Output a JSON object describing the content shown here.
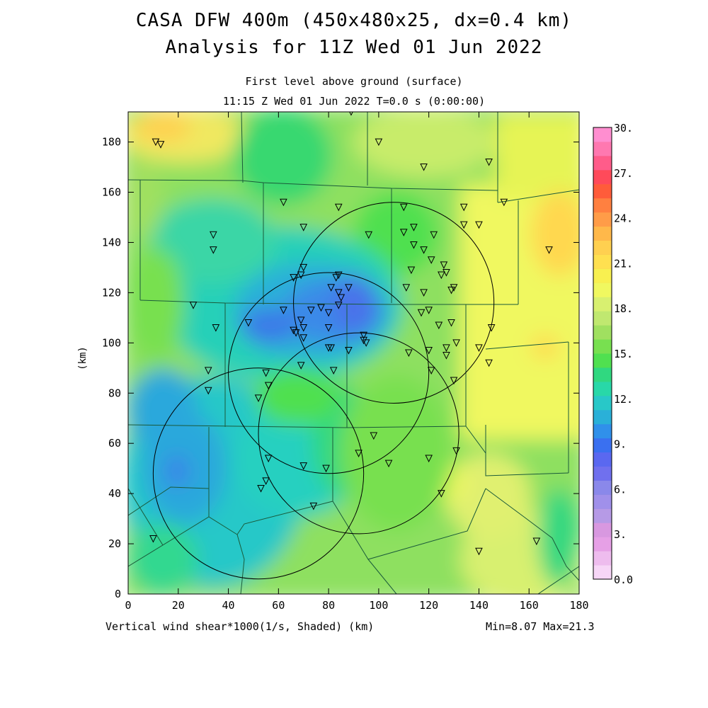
{
  "title": {
    "line1": "CASA DFW 400m (450x480x25, dx=0.4 km)",
    "line2": "Analysis for 11Z Wed 01 Jun 2022",
    "level": "First level above ground (surface)",
    "time": "11:15 Z Wed 01 Jun 2022    T=0.0 s (0:00:00)"
  },
  "footer": {
    "field_label": "Vertical wind shear*1000(1/s, Shaded)  (km)",
    "minmax": "Min=8.07 Max=21.3"
  },
  "axes": {
    "ylabel": "(km)",
    "x_ticks": [
      "0",
      "20",
      "40",
      "60",
      "80",
      "100",
      "120",
      "140",
      "160",
      "180"
    ],
    "y_ticks": [
      "0",
      "20",
      "40",
      "60",
      "80",
      "100",
      "120",
      "140",
      "160",
      "180"
    ],
    "xlim": [
      0,
      180
    ],
    "ylim": [
      0,
      192
    ]
  },
  "colorbar": {
    "labels": [
      "0.0",
      "3.",
      "6.",
      "9.",
      "12.",
      "15.",
      "18.",
      "21.",
      "24.",
      "27.",
      "30."
    ],
    "colors": [
      "#f7d6f7",
      "#eebcee",
      "#e6a0e6",
      "#d898e0",
      "#b69ae6",
      "#a090ea",
      "#8a88ea",
      "#7070ee",
      "#5a68f0",
      "#3a70f0",
      "#3090ea",
      "#2ab0d8",
      "#28c8c8",
      "#28d8a8",
      "#30d880",
      "#50e050",
      "#78e050",
      "#a0e060",
      "#c0e870",
      "#d8f070",
      "#f0f860",
      "#f8f050",
      "#ffe050",
      "#ffd050",
      "#ffb84a",
      "#ff9c48",
      "#ff8040",
      "#ff5c3a",
      "#ff4a5a",
      "#ff5c8a",
      "#ff78b0",
      "#ff8ed0"
    ]
  },
  "map": {
    "radar_circles_km": [
      {
        "cx": 52,
        "cy": 48,
        "r": 42
      },
      {
        "cx": 106,
        "cy": 116,
        "r": 40
      },
      {
        "cx": 80,
        "cy": 88,
        "r": 40
      },
      {
        "cx": 92,
        "cy": 64,
        "r": 40
      }
    ],
    "stations_km": [
      [
        11,
        180
      ],
      [
        13,
        179
      ],
      [
        89,
        192
      ],
      [
        100,
        180
      ],
      [
        118,
        170
      ],
      [
        144,
        172
      ],
      [
        150,
        156
      ],
      [
        62,
        156
      ],
      [
        84,
        154
      ],
      [
        110,
        154
      ],
      [
        134,
        154
      ],
      [
        34,
        143
      ],
      [
        34,
        137
      ],
      [
        70,
        146
      ],
      [
        96,
        143
      ],
      [
        110,
        144
      ],
      [
        114,
        146
      ],
      [
        122,
        143
      ],
      [
        134,
        147
      ],
      [
        140,
        147
      ],
      [
        168,
        137
      ],
      [
        114,
        139
      ],
      [
        118,
        137
      ],
      [
        121,
        133
      ],
      [
        126,
        131
      ],
      [
        127,
        128
      ],
      [
        125,
        127
      ],
      [
        113,
        129
      ],
      [
        70,
        130
      ],
      [
        69,
        127
      ],
      [
        66,
        126
      ],
      [
        84,
        127
      ],
      [
        83,
        126
      ],
      [
        88,
        122
      ],
      [
        81,
        122
      ],
      [
        84,
        120
      ],
      [
        85,
        118
      ],
      [
        111,
        122
      ],
      [
        118,
        120
      ],
      [
        130,
        122
      ],
      [
        129,
        121
      ],
      [
        26,
        115
      ],
      [
        62,
        113
      ],
      [
        69,
        109
      ],
      [
        73,
        113
      ],
      [
        77,
        114
      ],
      [
        80,
        112
      ],
      [
        84,
        115
      ],
      [
        120,
        113
      ],
      [
        117,
        112
      ],
      [
        129,
        108
      ],
      [
        48,
        108
      ],
      [
        35,
        106
      ],
      [
        66,
        105
      ],
      [
        70,
        106
      ],
      [
        67,
        104
      ],
      [
        80,
        106
      ],
      [
        94,
        103
      ],
      [
        94,
        101
      ],
      [
        95,
        100
      ],
      [
        124,
        107
      ],
      [
        145,
        106
      ],
      [
        70,
        102
      ],
      [
        80,
        98
      ],
      [
        81,
        98
      ],
      [
        88,
        97
      ],
      [
        112,
        96
      ],
      [
        120,
        97
      ],
      [
        127,
        98
      ],
      [
        131,
        100
      ],
      [
        140,
        98
      ],
      [
        32,
        89
      ],
      [
        69,
        91
      ],
      [
        82,
        89
      ],
      [
        121,
        89
      ],
      [
        127,
        95
      ],
      [
        144,
        92
      ],
      [
        55,
        88
      ],
      [
        56,
        83
      ],
      [
        32,
        81
      ],
      [
        52,
        78
      ],
      [
        130,
        85
      ],
      [
        98,
        63
      ],
      [
        56,
        54
      ],
      [
        70,
        51
      ],
      [
        79,
        50
      ],
      [
        92,
        56
      ],
      [
        104,
        52
      ],
      [
        120,
        54
      ],
      [
        131,
        57
      ],
      [
        55,
        45
      ],
      [
        53,
        42
      ],
      [
        74,
        35
      ],
      [
        125,
        40
      ],
      [
        10,
        22
      ],
      [
        140,
        17
      ],
      [
        163,
        21
      ]
    ]
  }
}
